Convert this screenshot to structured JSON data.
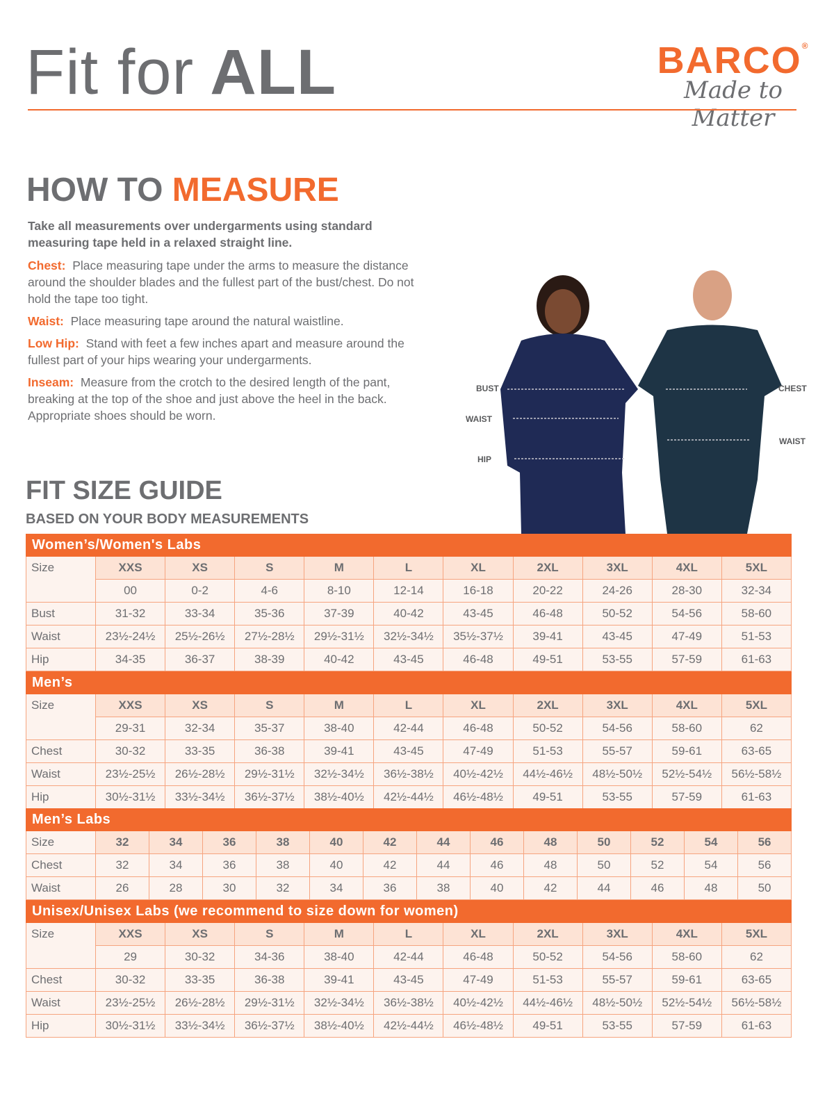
{
  "header": {
    "title_light": "Fit for",
    "title_bold": "ALL",
    "logo_brand": "BARCO",
    "logo_reg": "®",
    "logo_tagline": "Made to Matter",
    "colors": {
      "accent": "#f26a2e",
      "text": "#6d6e71"
    }
  },
  "measure": {
    "heading_gray": "HOW TO",
    "heading_orange": "MEASURE",
    "intro": "Take all measurements over undergarments using standard measuring tape held in a relaxed straight line.",
    "items": [
      {
        "label": "Chest:",
        "text": "Place measuring tape under the arms to measure the distance around the shoulder blades and the fullest part of the bust/chest. Do not hold the tape too tight."
      },
      {
        "label": "Waist:",
        "text": "Place measuring tape around the natural waistline."
      },
      {
        "label": "Low Hip:",
        "text": "Stand with feet a few inches apart and measure around the fullest part of your hips wearing your undergarments."
      },
      {
        "label": "Inseam:",
        "text": "Measure from the crotch to the desired length of the pant, breaking at the top of the shoe and just above the heel in the back. Appropriate shoes should be worn."
      }
    ]
  },
  "figure": {
    "women_labels": [
      "BUST",
      "WAIST",
      "HIP"
    ],
    "men_labels": [
      "CHEST",
      "WAIST"
    ]
  },
  "guide": {
    "title": "FIT SIZE GUIDE",
    "subtitle": "BASED ON YOUR BODY MEASUREMENTS"
  },
  "tables": [
    {
      "title": "Women’s/Women's Labs",
      "rows": [
        [
          "Size",
          "XXS",
          "XS",
          "S",
          "M",
          "L",
          "XL",
          "2XL",
          "3XL",
          "4XL",
          "5XL"
        ],
        [
          "",
          "00",
          "0-2",
          "4-6",
          "8-10",
          "12-14",
          "16-18",
          "20-22",
          "24-26",
          "28-30",
          "32-34"
        ],
        [
          "Bust",
          "31-32",
          "33-34",
          "35-36",
          "37-39",
          "40-42",
          "43-45",
          "46-48",
          "50-52",
          "54-56",
          "58-60"
        ],
        [
          "Waist",
          "23½-24½",
          "25½-26½",
          "27½-28½",
          "29½-31½",
          "32½-34½",
          "35½-37½",
          "39-41",
          "43-45",
          "47-49",
          "51-53"
        ],
        [
          "Hip",
          "34-35",
          "36-37",
          "38-39",
          "40-42",
          "43-45",
          "46-48",
          "49-51",
          "53-55",
          "57-59",
          "61-63"
        ]
      ]
    },
    {
      "title": "Men’s",
      "rows": [
        [
          "Size",
          "XXS",
          "XS",
          "S",
          "M",
          "L",
          "XL",
          "2XL",
          "3XL",
          "4XL",
          "5XL"
        ],
        [
          "",
          "29-31",
          "32-34",
          "35-37",
          "38-40",
          "42-44",
          "46-48",
          "50-52",
          "54-56",
          "58-60",
          "62"
        ],
        [
          "Chest",
          "30-32",
          "33-35",
          "36-38",
          "39-41",
          "43-45",
          "47-49",
          "51-53",
          "55-57",
          "59-61",
          "63-65"
        ],
        [
          "Waist",
          "23½-25½",
          "26½-28½",
          "29½-31½",
          "32½-34½",
          "36½-38½",
          "40½-42½",
          "44½-46½",
          "48½-50½",
          "52½-54½",
          "56½-58½"
        ],
        [
          "Hip",
          "30½-31½",
          "33½-34½",
          "36½-37½",
          "38½-40½",
          "42½-44½",
          "46½-48½",
          "49-51",
          "53-55",
          "57-59",
          "61-63"
        ]
      ]
    },
    {
      "title": "Men’s Labs",
      "rows": [
        [
          "Size",
          "32",
          "34",
          "36",
          "38",
          "40",
          "42",
          "44",
          "46",
          "48",
          "50",
          "52",
          "54",
          "56"
        ],
        [
          "Chest",
          "32",
          "34",
          "36",
          "38",
          "40",
          "42",
          "44",
          "46",
          "48",
          "50",
          "52",
          "54",
          "56"
        ],
        [
          "Waist",
          "26",
          "28",
          "30",
          "32",
          "34",
          "36",
          "38",
          "40",
          "42",
          "44",
          "46",
          "48",
          "50"
        ]
      ]
    },
    {
      "title": "Unisex/Unisex Labs (we recommend to size down for women)",
      "rows": [
        [
          "Size",
          "XXS",
          "XS",
          "S",
          "M",
          "L",
          "XL",
          "2XL",
          "3XL",
          "4XL",
          "5XL"
        ],
        [
          "",
          "29",
          "30-32",
          "34-36",
          "38-40",
          "42-44",
          "46-48",
          "50-52",
          "54-56",
          "58-60",
          "62"
        ],
        [
          "Chest",
          "30-32",
          "33-35",
          "36-38",
          "39-41",
          "43-45",
          "47-49",
          "51-53",
          "55-57",
          "59-61",
          "63-65"
        ],
        [
          "Waist",
          "23½-25½",
          "26½-28½",
          "29½-31½",
          "32½-34½",
          "36½-38½",
          "40½-42½",
          "44½-46½",
          "48½-50½",
          "52½-54½",
          "56½-58½"
        ],
        [
          "Hip",
          "30½-31½",
          "33½-34½",
          "36½-37½",
          "38½-40½",
          "42½-44½",
          "46½-48½",
          "49-51",
          "53-55",
          "57-59",
          "61-63"
        ]
      ]
    }
  ]
}
